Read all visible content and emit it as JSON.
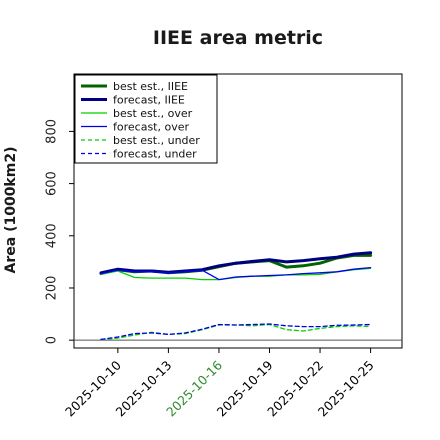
{
  "chart_data": {
    "type": "line",
    "title": "IIEE area metric",
    "xlabel": "",
    "ylabel": "Area (1000km2)",
    "ylim": [
      -30,
      1020
    ],
    "yticks": [
      0,
      200,
      400,
      600,
      800
    ],
    "ytick_labels": [
      "0",
      "200",
      "400",
      "600",
      "800"
    ],
    "x": [
      "2025-10-09",
      "2025-10-10",
      "2025-10-11",
      "2025-10-12",
      "2025-10-13",
      "2025-10-14",
      "2025-10-15",
      "2025-10-16",
      "2025-10-17",
      "2025-10-18",
      "2025-10-19",
      "2025-10-20",
      "2025-10-21",
      "2025-10-22",
      "2025-10-23",
      "2025-10-24",
      "2025-10-25"
    ],
    "xticks": [
      "2025-10-10",
      "2025-10-13",
      "2025-10-16",
      "2025-10-19",
      "2025-10-22",
      "2025-10-25"
    ],
    "xtick_colors": [
      "#000000",
      "#000000",
      "#2e8b2e",
      "#000000",
      "#000000",
      "#000000"
    ],
    "grid": false,
    "legend_position": "top-left",
    "series": [
      {
        "name": "best est., IIEE",
        "color": "#006400",
        "style": "solid",
        "width": 3,
        "values": [
          255,
          270,
          262,
          265,
          258,
          262,
          268,
          282,
          295,
          300,
          305,
          280,
          285,
          295,
          315,
          325,
          325
        ]
      },
      {
        "name": "forecast, IIEE",
        "color": "#00007f",
        "style": "solid",
        "width": 3,
        "values": [
          258,
          272,
          265,
          265,
          260,
          265,
          270,
          285,
          295,
          302,
          308,
          300,
          305,
          312,
          318,
          330,
          335
        ]
      },
      {
        "name": "best est., over",
        "color": "#00d000",
        "style": "solid",
        "width": 1.3,
        "values": [
          253,
          265,
          240,
          238,
          238,
          238,
          232,
          232,
          240,
          245,
          245,
          250,
          250,
          252,
          262,
          270,
          275
        ]
      },
      {
        "name": "forecast, over",
        "color": "#0000ee",
        "style": "solid",
        "width": 1.3,
        "values": [
          255,
          268,
          262,
          262,
          258,
          262,
          268,
          232,
          242,
          245,
          248,
          250,
          255,
          258,
          262,
          272,
          278
        ]
      },
      {
        "name": "best est., under",
        "color": "#00d000",
        "style": "dashed",
        "width": 1.3,
        "values": [
          3,
          8,
          20,
          30,
          22,
          25,
          40,
          58,
          58,
          55,
          60,
          40,
          35,
          45,
          52,
          55,
          52
        ]
      },
      {
        "name": "forecast, under",
        "color": "#0000ee",
        "style": "dashed",
        "width": 1.3,
        "values": [
          3,
          12,
          25,
          28,
          22,
          28,
          42,
          60,
          58,
          60,
          62,
          55,
          52,
          52,
          57,
          58,
          60
        ]
      }
    ],
    "zero_line": 0
  }
}
